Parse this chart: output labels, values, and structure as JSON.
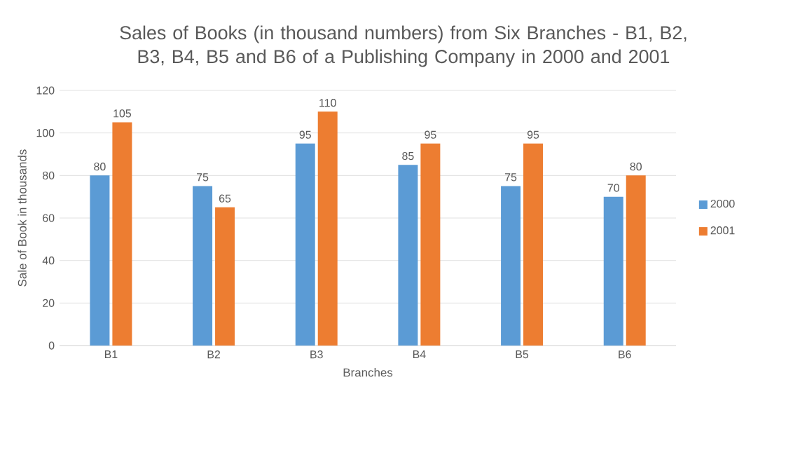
{
  "chart_data": {
    "type": "bar",
    "title": "Sales of Books (in thousand numbers) from Six Branches - B1, B2, B3, B4, B5 and B6 of a Publishing Company in 2000 and 2001",
    "xlabel": "Branches",
    "ylabel": "Sale of Book in thousands",
    "categories": [
      "B1",
      "B2",
      "B3",
      "B4",
      "B5",
      "B6"
    ],
    "series": [
      {
        "name": "2000",
        "color": "#5b9bd5",
        "values": [
          80,
          75,
          95,
          85,
          75,
          70
        ]
      },
      {
        "name": "2001",
        "color": "#ed7d31",
        "values": [
          105,
          65,
          110,
          95,
          95,
          80
        ]
      }
    ],
    "ylim": [
      0,
      120
    ],
    "yticks": [
      0,
      20,
      40,
      60,
      80,
      100,
      120
    ],
    "grid": "y",
    "legend": "right",
    "data_labels": true
  }
}
